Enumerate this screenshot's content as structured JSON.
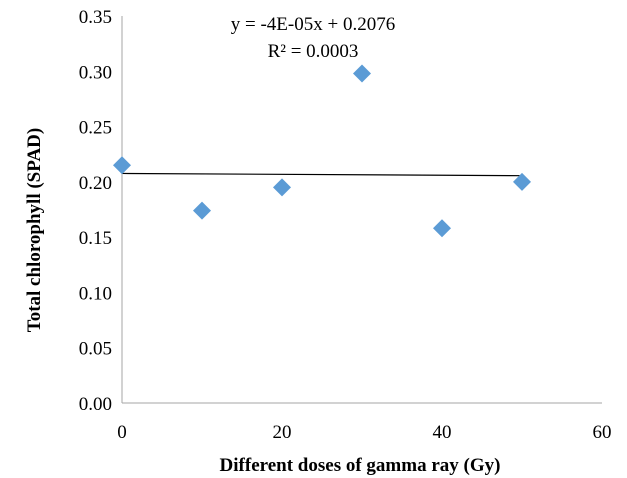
{
  "chart_data": {
    "type": "scatter",
    "title": "",
    "xlabel": "Different doses of gamma ray (Gy)",
    "ylabel": "Total chlorophyll (SPAD)",
    "xlim": [
      0,
      60
    ],
    "ylim": [
      0,
      0.35
    ],
    "x_ticks": [
      "0",
      "20",
      "40",
      "60"
    ],
    "x_tick_values": [
      0,
      20,
      40,
      60
    ],
    "y_ticks": [
      "0.00",
      "0.05",
      "0.10",
      "0.15",
      "0.20",
      "0.25",
      "0.30",
      "0.35"
    ],
    "y_tick_values": [
      0,
      0.05,
      0.1,
      0.15,
      0.2,
      0.25,
      0.3,
      0.35
    ],
    "grid": false,
    "series": [
      {
        "x": [
          0,
          10,
          20,
          30,
          40,
          50
        ],
        "y": [
          0.215,
          0.174,
          0.195,
          0.298,
          0.158,
          0.2
        ],
        "marker": "diamond",
        "color": "#5b9bd5"
      }
    ],
    "trendline": {
      "type": "linear",
      "slope": -4e-05,
      "intercept": 0.2076,
      "x_range": [
        0,
        50
      ],
      "color": "#000000",
      "equation_label": "y = -4E-05x + 0.2076",
      "r2_label": "R² = 0.0003"
    }
  }
}
